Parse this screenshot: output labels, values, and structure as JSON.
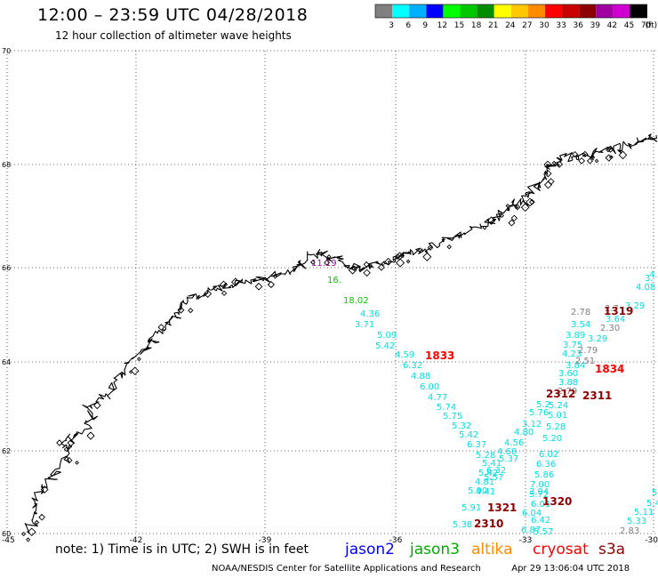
{
  "header": {
    "title": "12:00 – 23:59 UTC 04/28/2018",
    "subtitle": "12 hour collection of altimeter wave heights"
  },
  "legend": {
    "unit": "(ft)",
    "items": [
      {
        "label": "3",
        "color": "#808080"
      },
      {
        "label": "6",
        "color": "#00ffff"
      },
      {
        "label": "9",
        "color": "#00b0ff"
      },
      {
        "label": "12",
        "color": "#0000ff"
      },
      {
        "label": "15",
        "color": "#00ff00"
      },
      {
        "label": "18",
        "color": "#00c800"
      },
      {
        "label": "21",
        "color": "#008c00"
      },
      {
        "label": "24",
        "color": "#ffff00"
      },
      {
        "label": "27",
        "color": "#ffc800"
      },
      {
        "label": "30",
        "color": "#ff8c00"
      },
      {
        "label": "33",
        "color": "#ff0000"
      },
      {
        "label": "36",
        "color": "#c80000"
      },
      {
        "label": "39",
        "color": "#8c0000"
      },
      {
        "label": "42",
        "color": "#a000a0"
      },
      {
        "label": "45",
        "color": "#d000d0"
      },
      {
        "label": "70",
        "color": "#000000"
      }
    ]
  },
  "grid": {
    "lat_labels": [
      "70",
      "68",
      "66",
      "64",
      "62",
      "60"
    ],
    "lon_labels": [
      "-45",
      "-42",
      "-39",
      "-36",
      "-33",
      "-30"
    ]
  },
  "observations": [
    {
      "text": "11.19",
      "color": "#a000a0"
    },
    {
      "text": "16.",
      "color": "#00c800"
    },
    {
      "text": "18.02",
      "color": "#00c800"
    },
    {
      "text": "4.36",
      "color": "#00e0e0"
    },
    {
      "text": "3.71",
      "color": "#00e0e0"
    },
    {
      "text": "5.09",
      "color": "#00e0e0"
    },
    {
      "text": "5.42",
      "color": "#00e0e0"
    },
    {
      "text": "4.59",
      "color": "#00e0e0"
    },
    {
      "text": "6.32",
      "color": "#00e0e0"
    },
    {
      "text": "4.88",
      "color": "#00e0e0"
    },
    {
      "text": "6.00",
      "color": "#00e0e0"
    },
    {
      "text": "4.77",
      "color": "#00e0e0"
    },
    {
      "text": "5.74",
      "color": "#00e0e0"
    },
    {
      "text": "5.75",
      "color": "#00e0e0"
    },
    {
      "text": "5.32",
      "color": "#00e0e0"
    },
    {
      "text": "5.42",
      "color": "#00e0e0"
    },
    {
      "text": "6.37",
      "color": "#00e0e0"
    },
    {
      "text": "5.28",
      "color": "#00e0e0"
    },
    {
      "text": "5.41",
      "color": "#00e0e0"
    },
    {
      "text": "6.32",
      "color": "#00e0e0"
    },
    {
      "text": "5.42",
      "color": "#00e0e0"
    },
    {
      "text": "5.57",
      "color": "#00e0e0"
    },
    {
      "text": "4.81",
      "color": "#00e0e0"
    },
    {
      "text": "4.41",
      "color": "#00e0e0"
    },
    {
      "text": "5.90",
      "color": "#00e0e0"
    },
    {
      "text": "5.91",
      "color": "#00e0e0"
    },
    {
      "text": "5.38",
      "color": "#00e0e0"
    },
    {
      "text": "4.56",
      "color": "#00e0e0"
    },
    {
      "text": "4.68",
      "color": "#00e0e0"
    },
    {
      "text": "5.37",
      "color": "#00e0e0"
    },
    {
      "text": "3.04",
      "color": "#00e0e0"
    },
    {
      "text": "4.80",
      "color": "#00e0e0"
    },
    {
      "text": "3.12",
      "color": "#00e0e0"
    },
    {
      "text": "5.2",
      "color": "#00e0e0"
    },
    {
      "text": "5.76",
      "color": "#00e0e0"
    },
    {
      "text": "6.02",
      "color": "#00e0e0"
    },
    {
      "text": "6.36",
      "color": "#00e0e0"
    },
    {
      "text": "5.86",
      "color": "#00e0e0"
    },
    {
      "text": "7.00",
      "color": "#00e0e0"
    },
    {
      "text": "5.72",
      "color": "#00e0e0"
    },
    {
      "text": "6.01",
      "color": "#00e0e0"
    },
    {
      "text": "6.04",
      "color": "#00e0e0"
    },
    {
      "text": "6.42",
      "color": "#00e0e0"
    },
    {
      "text": "6.87",
      "color": "#00e0e0"
    },
    {
      "text": "5.57",
      "color": "#00e0e0"
    },
    {
      "text": "5.24",
      "color": "#00e0e0"
    },
    {
      "text": "5.01",
      "color": "#00e0e0"
    },
    {
      "text": "5.28",
      "color": "#00e0e0"
    },
    {
      "text": "5.20",
      "color": "#00e0e0"
    },
    {
      "text": "3.54",
      "color": "#00e0e0"
    },
    {
      "text": "3.89",
      "color": "#00e0e0"
    },
    {
      "text": "3.75",
      "color": "#00e0e0"
    },
    {
      "text": "4.23",
      "color": "#00e0e0"
    },
    {
      "text": "3.84",
      "color": "#00e0e0"
    },
    {
      "text": "3.60",
      "color": "#00e0e0"
    },
    {
      "text": "3.88",
      "color": "#00e0e0"
    },
    {
      "text": "2.79",
      "color": "#808080"
    },
    {
      "text": "3.29",
      "color": "#00e0e0"
    },
    {
      "text": "3.64",
      "color": "#00e0e0"
    },
    {
      "text": "3.29",
      "color": "#00e0e0"
    },
    {
      "text": "4.08",
      "color": "#00e0e0"
    },
    {
      "text": "3.",
      "color": "#00e0e0"
    },
    {
      "text": "4.",
      "color": "#00e0e0"
    },
    {
      "text": "5.3",
      "color": "#00e0e0"
    },
    {
      "text": "5.42",
      "color": "#00e0e0"
    },
    {
      "text": "5.11",
      "color": "#00e0e0"
    },
    {
      "text": "5.33",
      "color": "#00e0e0"
    },
    {
      "text": "2.83",
      "color": "#808080"
    },
    {
      "text": "2.78",
      "color": "#808080"
    },
    {
      "text": "2.30",
      "color": "#808080"
    },
    {
      "text": "2.79",
      "color": "#808080"
    },
    {
      "text": "2.51",
      "color": "#808080"
    },
    {
      "text": "2.7",
      "color": "#808080"
    },
    {
      "text": "2312",
      "color": "#8c0000"
    },
    {
      "text": "1833",
      "color": "#ff0000"
    },
    {
      "text": "1319",
      "color": "#8c0000"
    },
    {
      "text": "1834",
      "color": "#ff0000"
    },
    {
      "text": "2311",
      "color": "#8c0000"
    },
    {
      "text": "1320",
      "color": "#8c0000"
    },
    {
      "text": "1321",
      "color": "#8c0000"
    },
    {
      "text": "2310",
      "color": "#8c0000"
    }
  ],
  "footer": {
    "note": "note: 1) Time is in UTC; 2) SWH is in feet",
    "satellites": [
      {
        "name": "jason2",
        "color": "#0000ff"
      },
      {
        "name": "jason3",
        "color": "#00aa00"
      },
      {
        "name": "altika",
        "color": "#ff8c00"
      },
      {
        "name": "cryosat",
        "color": "#ff0000"
      },
      {
        "name": "s3a",
        "color": "#8c0000"
      }
    ],
    "credit": "NOAA/NESDIS Center for Satellite Applications and Research",
    "generated": "Apr 29 13:06:04 UTC 2018"
  }
}
